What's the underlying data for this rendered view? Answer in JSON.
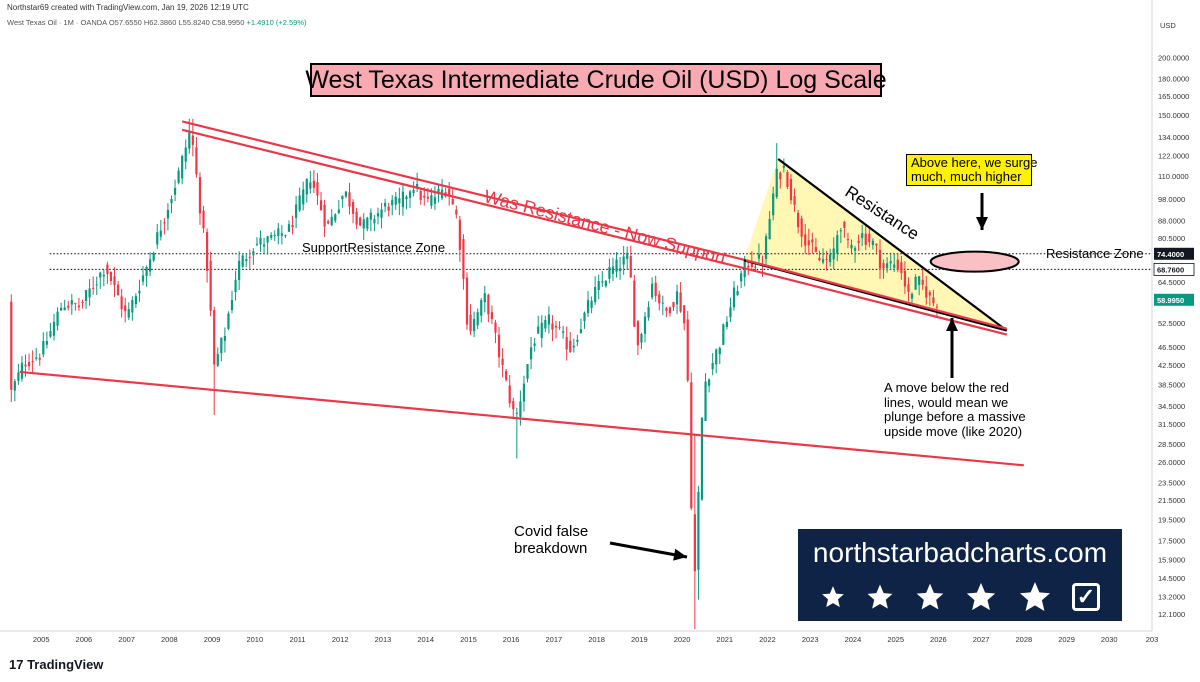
{
  "header": {
    "attribution": "Northstar69 created with TradingView.com, Jan 19, 2026 12:19 UTC",
    "symbol": "West Texas Oil · 1M · OANDA",
    "ohlc": "O57.6550 H62.3860 L55.8240 C58.9950",
    "change": "+1.4910 (+2.59%)"
  },
  "currency": "USD",
  "brand": {
    "text": "northstarbadcharts.com",
    "stars": 5
  },
  "footer": {
    "logo": "17 TradingView"
  },
  "colors": {
    "up": "#089981",
    "down": "#f23645",
    "trend_line": "#e8394a",
    "triangle_fill": "#fff7b3",
    "title_bg": "#f8a9b2",
    "brand_bg": "#0f2347",
    "callout_bg": "#fff200",
    "ellipse_fill": "#f9c0c5"
  },
  "chart_data": {
    "type": "candlestick",
    "title": "West Texas Intermediate Crude Oil (USD) Log Scale",
    "y_scale": "log",
    "ylim": [
      11.1,
      230
    ],
    "xlim": [
      2004.2,
      2031.0
    ],
    "grid": false,
    "y_ticks": [
      "200.0000",
      "180.0000",
      "165.0000",
      "150.0000",
      "134.0000",
      "122.0000",
      "110.0000",
      "98.0000",
      "88.0000",
      "80.5000",
      "74.4000",
      "68.7600",
      "64.5000",
      "58.9950",
      "52.5000",
      "46.5000",
      "42.5000",
      "38.5000",
      "34.5000",
      "31.5000",
      "28.5000",
      "26.0000",
      "23.5000",
      "21.5000",
      "19.5000",
      "17.5000",
      "15.9000",
      "14.5000",
      "13.2000",
      "12.1000"
    ],
    "x_ticks": [
      "2005",
      "2006",
      "2007",
      "2008",
      "2009",
      "2010",
      "2011",
      "2012",
      "2013",
      "2014",
      "2015",
      "2016",
      "2017",
      "2018",
      "2019",
      "2020",
      "2021",
      "2022",
      "2023",
      "2024",
      "2025",
      "2026",
      "2027",
      "2028",
      "2029",
      "2030",
      "203"
    ],
    "price_labels": [
      {
        "value": 74.4,
        "text": "74.4000",
        "style": "dark"
      },
      {
        "value": 68.76,
        "text": "68.7600",
        "style": "light"
      },
      {
        "value": 58.995,
        "text": "58.9950",
        "style": "current"
      }
    ],
    "candle_anchors": [
      [
        2004.3,
        37
      ],
      [
        2004.6,
        43
      ],
      [
        2005.0,
        45
      ],
      [
        2005.5,
        58
      ],
      [
        2005.9,
        57
      ],
      [
        2006.5,
        70
      ],
      [
        2007.0,
        54
      ],
      [
        2007.5,
        71
      ],
      [
        2007.9,
        91
      ],
      [
        2008.2,
        110
      ],
      [
        2008.5,
        140
      ],
      [
        2008.9,
        68
      ],
      [
        2009.05,
        42
      ],
      [
        2009.3,
        50
      ],
      [
        2009.6,
        70
      ],
      [
        2010.0,
        78
      ],
      [
        2010.4,
        80
      ],
      [
        2010.8,
        84
      ],
      [
        2011.3,
        110
      ],
      [
        2011.7,
        85
      ],
      [
        2012.1,
        102
      ],
      [
        2012.5,
        85
      ],
      [
        2012.8,
        90
      ],
      [
        2013.1,
        95
      ],
      [
        2013.4,
        96
      ],
      [
        2013.7,
        106
      ],
      [
        2014.0,
        96
      ],
      [
        2014.5,
        104
      ],
      [
        2014.75,
        88
      ],
      [
        2015.0,
        50
      ],
      [
        2015.4,
        60
      ],
      [
        2015.9,
        38
      ],
      [
        2016.1,
        32
      ],
      [
        2016.5,
        48
      ],
      [
        2016.9,
        53
      ],
      [
        2017.4,
        46
      ],
      [
        2017.9,
        60
      ],
      [
        2018.3,
        68
      ],
      [
        2018.75,
        73
      ],
      [
        2018.95,
        46
      ],
      [
        2019.3,
        64
      ],
      [
        2019.6,
        55
      ],
      [
        2019.9,
        61
      ],
      [
        2020.1,
        50
      ],
      [
        2020.28,
        13.5
      ],
      [
        2020.5,
        38
      ],
      [
        2020.9,
        48
      ],
      [
        2021.2,
        60
      ],
      [
        2021.5,
        71
      ],
      [
        2021.9,
        72
      ],
      [
        2022.2,
        110
      ],
      [
        2022.4,
        115
      ],
      [
        2022.7,
        88
      ],
      [
        2022.9,
        80
      ],
      [
        2023.2,
        72
      ],
      [
        2023.5,
        72
      ],
      [
        2023.7,
        88
      ],
      [
        2023.9,
        76
      ],
      [
        2024.2,
        82
      ],
      [
        2024.5,
        78
      ],
      [
        2024.7,
        69
      ],
      [
        2024.9,
        71
      ],
      [
        2025.1,
        70
      ],
      [
        2025.3,
        60
      ],
      [
        2025.5,
        65
      ],
      [
        2025.7,
        62
      ],
      [
        2025.85,
        58
      ],
      [
        2026.04,
        59
      ]
    ],
    "trend_lines": [
      {
        "from": [
          2008.3,
          145
        ],
        "to": [
          2021.5,
          72
        ]
      },
      {
        "from": [
          2008.3,
          139
        ],
        "to": [
          2021.5,
          69
        ]
      },
      {
        "from": [
          2004.5,
          41
        ],
        "to": [
          2028.0,
          25.6
        ]
      },
      {
        "from": [
          2021.45,
          72
        ],
        "to": [
          2027.6,
          50.5
        ]
      },
      {
        "from": [
          2022.25,
          120
        ],
        "to": [
          2027.6,
          50.5
        ]
      }
    ],
    "triangle": [
      [
        2021.45,
        72
      ],
      [
        2022.25,
        120
      ],
      [
        2027.6,
        50.5
      ]
    ],
    "zone_lines": [
      74.4,
      68.76
    ],
    "highlight_ellipse": {
      "x": 2026.85,
      "y": 71.5
    },
    "annotations": [
      {
        "text": "SupportResistance Zone"
      },
      {
        "text": "Resistance Zone"
      },
      {
        "text": "Was Resistance - Now Support"
      },
      {
        "text": "Resistance"
      },
      {
        "text": "Above here, we surge much, much higher"
      },
      {
        "text": "A move below the red lines, would mean we plunge before a massive upside move (like 2020)"
      },
      {
        "text": "Covid false breakdown"
      }
    ]
  },
  "annotation_lines": {
    "srz": "SupportResistance Zone",
    "rz": "Resistance Zone",
    "was_res": "Was Resistance - Now Support",
    "res": "Resistance",
    "above_1": "Above here, we surge",
    "above_2": "much, much higher",
    "move_1": "A move below the red",
    "move_2": "lines, would mean we",
    "move_3": "plunge before a massive",
    "move_4": "upside move (like 2020)",
    "covid_1": "Covid false",
    "covid_2": "breakdown"
  }
}
